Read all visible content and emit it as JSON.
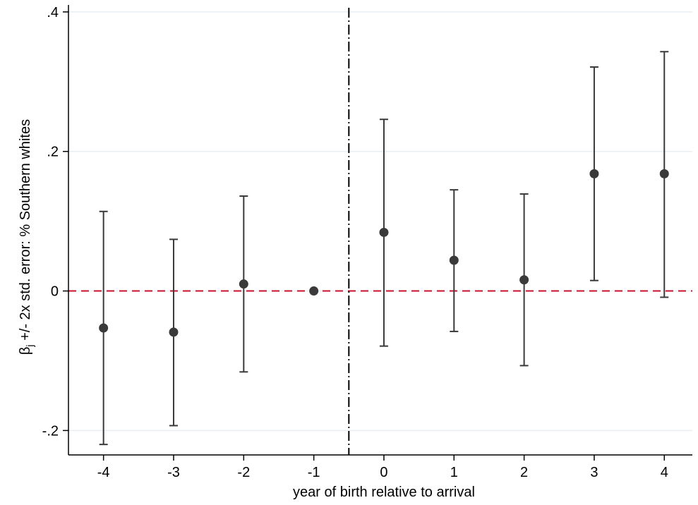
{
  "chart_data": {
    "type": "scatter",
    "subtype": "coefficient plot with error bars",
    "title": "",
    "xlabel": "year of birth relative to arrival",
    "ylabel": {
      "prefix": "β",
      "subscript": "j",
      "suffix": " +/- 2x std. error: % Southern whites"
    },
    "x_ticks": [
      -4,
      -3,
      -2,
      -1,
      0,
      1,
      2,
      3,
      4
    ],
    "x_tick_labels": [
      "-4",
      "-3",
      "-2",
      "-1",
      "0",
      "1",
      "2",
      "3",
      "4"
    ],
    "y_ticks": [
      -0.2,
      0,
      0.2,
      0.4
    ],
    "y_tick_labels": [
      "-.2",
      "0",
      ".2",
      ".4"
    ],
    "xlim": [
      -4.5,
      4.4
    ],
    "ylim": [
      -0.235,
      0.41
    ],
    "grid": "horizontal",
    "reference_lines": {
      "horizontal_zero": {
        "y": 0,
        "style": "dashed",
        "color": "#c8102e"
      },
      "vertical_cutoff": {
        "x": -0.5,
        "style": "dash-dot",
        "color": "#000000"
      }
    },
    "points": [
      {
        "x": -4,
        "y": -0.053,
        "lo": -0.22,
        "hi": 0.114
      },
      {
        "x": -3,
        "y": -0.059,
        "lo": -0.193,
        "hi": 0.074
      },
      {
        "x": -2,
        "y": 0.01,
        "lo": -0.116,
        "hi": 0.136
      },
      {
        "x": -1,
        "y": 0.0,
        "lo": 0.0,
        "hi": 0.0
      },
      {
        "x": 0,
        "y": 0.084,
        "lo": -0.079,
        "hi": 0.246
      },
      {
        "x": 1,
        "y": 0.044,
        "lo": -0.058,
        "hi": 0.145
      },
      {
        "x": 2,
        "y": 0.016,
        "lo": -0.107,
        "hi": 0.139
      },
      {
        "x": 3,
        "y": 0.168,
        "lo": 0.015,
        "hi": 0.321
      },
      {
        "x": 4,
        "y": 0.168,
        "lo": -0.009,
        "hi": 0.343
      }
    ],
    "colors": {
      "marker": "#3a3a3a",
      "errorbar": "#3a3a3a",
      "grid": "#e8eef2",
      "axis": "#000000"
    }
  }
}
